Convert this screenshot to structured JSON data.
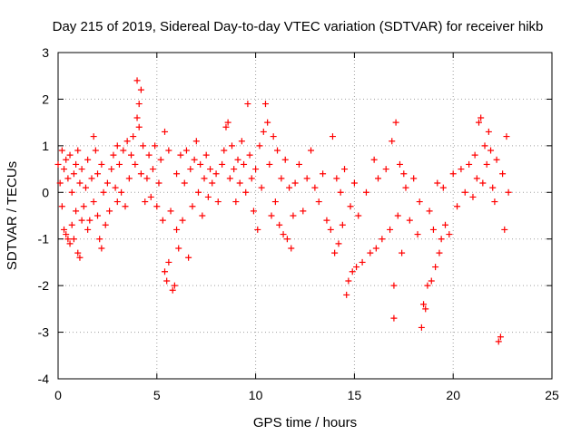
{
  "chart_data": {
    "type": "scatter",
    "title": "Day 215 of 2019, Sidereal Day-to-day VTEC variation (SDTVAR) for receiver hikb",
    "xlabel": "GPS time / hours",
    "ylabel": "SDTVAR / TECUs",
    "xlim": [
      0,
      25
    ],
    "ylim": [
      -4,
      3
    ],
    "xticks": [
      "0",
      "5",
      "10",
      "15",
      "20",
      "25"
    ],
    "yticks": [
      "-4",
      "-3",
      "-2",
      "-1",
      "0",
      "1",
      "2",
      "3"
    ],
    "grid": true,
    "marker": "plus",
    "color": "#ff0000",
    "series": [
      {
        "name": "SDTVAR",
        "values": [
          [
            0.0,
            0.6
          ],
          [
            0.1,
            0.2
          ],
          [
            0.2,
            0.9
          ],
          [
            0.2,
            -0.3
          ],
          [
            0.3,
            0.5
          ],
          [
            0.3,
            -0.8
          ],
          [
            0.4,
            0.7
          ],
          [
            0.4,
            -0.9
          ],
          [
            0.5,
            0.3
          ],
          [
            0.5,
            -1.0
          ],
          [
            0.6,
            0.8
          ],
          [
            0.6,
            -1.1
          ],
          [
            0.7,
            0.0
          ],
          [
            0.7,
            -0.7
          ],
          [
            0.8,
            0.4
          ],
          [
            0.8,
            -1.0
          ],
          [
            0.9,
            0.6
          ],
          [
            0.9,
            -0.4
          ],
          [
            1.0,
            -1.3
          ],
          [
            1.0,
            0.9
          ],
          [
            1.1,
            -1.4
          ],
          [
            1.1,
            0.2
          ],
          [
            1.2,
            -0.6
          ],
          [
            1.2,
            0.5
          ],
          [
            1.3,
            -0.3
          ],
          [
            1.4,
            0.1
          ],
          [
            1.5,
            -0.8
          ],
          [
            1.5,
            0.7
          ],
          [
            1.6,
            -0.6
          ],
          [
            1.7,
            0.3
          ],
          [
            1.8,
            1.2
          ],
          [
            1.8,
            -0.2
          ],
          [
            1.9,
            0.9
          ],
          [
            2.0,
            -0.5
          ],
          [
            2.0,
            0.4
          ],
          [
            2.1,
            -1.0
          ],
          [
            2.2,
            -1.2
          ],
          [
            2.2,
            0.6
          ],
          [
            2.3,
            0.0
          ],
          [
            2.4,
            -0.7
          ],
          [
            2.5,
            0.2
          ],
          [
            2.6,
            -0.4
          ],
          [
            2.7,
            0.5
          ],
          [
            2.8,
            0.8
          ],
          [
            2.9,
            0.1
          ],
          [
            3.0,
            1.0
          ],
          [
            3.0,
            -0.2
          ],
          [
            3.1,
            0.6
          ],
          [
            3.2,
            0.0
          ],
          [
            3.3,
            0.9
          ],
          [
            3.4,
            -0.3
          ],
          [
            3.5,
            1.1
          ],
          [
            3.6,
            0.3
          ],
          [
            3.7,
            0.8
          ],
          [
            3.8,
            1.2
          ],
          [
            3.9,
            0.6
          ],
          [
            4.0,
            1.6
          ],
          [
            4.0,
            2.4
          ],
          [
            4.1,
            1.9
          ],
          [
            4.1,
            1.4
          ],
          [
            4.2,
            2.2
          ],
          [
            4.2,
            0.4
          ],
          [
            4.3,
            1.0
          ],
          [
            4.4,
            -0.2
          ],
          [
            4.5,
            0.3
          ],
          [
            4.6,
            0.8
          ],
          [
            4.7,
            -0.1
          ],
          [
            4.8,
            0.5
          ],
          [
            4.9,
            1.0
          ],
          [
            5.0,
            -0.3
          ],
          [
            5.1,
            0.2
          ],
          [
            5.2,
            0.7
          ],
          [
            5.3,
            -0.6
          ],
          [
            5.4,
            1.3
          ],
          [
            5.4,
            -1.7
          ],
          [
            5.5,
            -1.9
          ],
          [
            5.6,
            0.9
          ],
          [
            5.6,
            -1.5
          ],
          [
            5.7,
            -0.4
          ],
          [
            5.8,
            -2.1
          ],
          [
            5.9,
            -2.0
          ],
          [
            6.0,
            -0.8
          ],
          [
            6.0,
            0.4
          ],
          [
            6.1,
            -1.2
          ],
          [
            6.2,
            0.8
          ],
          [
            6.3,
            -0.6
          ],
          [
            6.4,
            0.2
          ],
          [
            6.5,
            0.9
          ],
          [
            6.6,
            -1.4
          ],
          [
            6.7,
            0.5
          ],
          [
            6.8,
            -0.3
          ],
          [
            6.9,
            0.7
          ],
          [
            7.0,
            1.1
          ],
          [
            7.1,
            0.0
          ],
          [
            7.2,
            0.6
          ],
          [
            7.3,
            -0.5
          ],
          [
            7.4,
            0.3
          ],
          [
            7.5,
            0.8
          ],
          [
            7.6,
            -0.1
          ],
          [
            7.7,
            0.5
          ],
          [
            7.8,
            0.2
          ],
          [
            8.0,
            0.4
          ],
          [
            8.1,
            -0.2
          ],
          [
            8.3,
            0.6
          ],
          [
            8.4,
            0.9
          ],
          [
            8.5,
            1.4
          ],
          [
            8.6,
            1.5
          ],
          [
            8.7,
            0.3
          ],
          [
            8.8,
            1.0
          ],
          [
            8.9,
            0.5
          ],
          [
            9.0,
            -0.2
          ],
          [
            9.1,
            0.7
          ],
          [
            9.2,
            0.2
          ],
          [
            9.3,
            1.1
          ],
          [
            9.4,
            0.6
          ],
          [
            9.5,
            0.0
          ],
          [
            9.6,
            1.9
          ],
          [
            9.7,
            0.8
          ],
          [
            9.8,
            0.3
          ],
          [
            9.9,
            -0.4
          ],
          [
            10.0,
            0.5
          ],
          [
            10.1,
            -0.8
          ],
          [
            10.2,
            1.0
          ],
          [
            10.3,
            0.1
          ],
          [
            10.4,
            1.3
          ],
          [
            10.5,
            1.9
          ],
          [
            10.6,
            1.5
          ],
          [
            10.7,
            0.6
          ],
          [
            10.8,
            -0.5
          ],
          [
            10.9,
            1.2
          ],
          [
            11.0,
            -0.2
          ],
          [
            11.1,
            0.9
          ],
          [
            11.2,
            -0.7
          ],
          [
            11.3,
            0.3
          ],
          [
            11.4,
            -0.9
          ],
          [
            11.5,
            0.7
          ],
          [
            11.6,
            -1.0
          ],
          [
            11.7,
            0.1
          ],
          [
            11.8,
            -1.2
          ],
          [
            11.9,
            -0.5
          ],
          [
            12.0,
            0.2
          ],
          [
            12.2,
            0.6
          ],
          [
            12.4,
            -0.4
          ],
          [
            12.6,
            0.3
          ],
          [
            12.8,
            0.9
          ],
          [
            13.0,
            0.1
          ],
          [
            13.2,
            -0.2
          ],
          [
            13.4,
            0.4
          ],
          [
            13.6,
            -0.6
          ],
          [
            13.8,
            -0.8
          ],
          [
            13.9,
            1.2
          ],
          [
            14.0,
            -1.3
          ],
          [
            14.1,
            0.3
          ],
          [
            14.2,
            -1.1
          ],
          [
            14.3,
            0.0
          ],
          [
            14.4,
            -0.7
          ],
          [
            14.5,
            0.5
          ],
          [
            14.6,
            -2.2
          ],
          [
            14.7,
            -1.9
          ],
          [
            14.8,
            -0.3
          ],
          [
            14.9,
            -1.7
          ],
          [
            15.0,
            0.2
          ],
          [
            15.1,
            -1.6
          ],
          [
            15.2,
            -0.5
          ],
          [
            15.4,
            -1.5
          ],
          [
            15.6,
            0.0
          ],
          [
            15.8,
            -1.3
          ],
          [
            16.0,
            0.7
          ],
          [
            16.1,
            -1.2
          ],
          [
            16.2,
            0.3
          ],
          [
            16.4,
            -1.0
          ],
          [
            16.6,
            0.5
          ],
          [
            16.8,
            -0.8
          ],
          [
            16.9,
            1.1
          ],
          [
            17.0,
            -2.7
          ],
          [
            17.0,
            -2.0
          ],
          [
            17.1,
            1.5
          ],
          [
            17.2,
            -0.5
          ],
          [
            17.3,
            0.6
          ],
          [
            17.4,
            -1.3
          ],
          [
            17.5,
            0.4
          ],
          [
            17.6,
            0.1
          ],
          [
            17.8,
            -0.6
          ],
          [
            18.0,
            0.3
          ],
          [
            18.2,
            -0.9
          ],
          [
            18.3,
            -0.2
          ],
          [
            18.4,
            -2.9
          ],
          [
            18.5,
            -2.4
          ],
          [
            18.6,
            -2.5
          ],
          [
            18.7,
            -2.0
          ],
          [
            18.8,
            -0.4
          ],
          [
            18.9,
            -1.9
          ],
          [
            19.0,
            -0.8
          ],
          [
            19.1,
            -1.6
          ],
          [
            19.2,
            0.2
          ],
          [
            19.3,
            -1.3
          ],
          [
            19.4,
            -1.0
          ],
          [
            19.5,
            0.1
          ],
          [
            19.6,
            -0.7
          ],
          [
            19.8,
            -0.9
          ],
          [
            20.0,
            0.4
          ],
          [
            20.2,
            -0.3
          ],
          [
            20.4,
            0.5
          ],
          [
            20.6,
            0.0
          ],
          [
            20.8,
            0.6
          ],
          [
            21.0,
            -0.1
          ],
          [
            21.1,
            0.8
          ],
          [
            21.2,
            0.3
          ],
          [
            21.3,
            1.5
          ],
          [
            21.4,
            1.6
          ],
          [
            21.5,
            0.2
          ],
          [
            21.6,
            1.0
          ],
          [
            21.7,
            0.6
          ],
          [
            21.8,
            1.3
          ],
          [
            21.9,
            0.9
          ],
          [
            22.0,
            0.1
          ],
          [
            22.1,
            -0.2
          ],
          [
            22.2,
            0.7
          ],
          [
            22.3,
            -3.2
          ],
          [
            22.4,
            -3.1
          ],
          [
            22.5,
            0.4
          ],
          [
            22.6,
            -0.8
          ],
          [
            22.7,
            1.2
          ],
          [
            22.8,
            0.0
          ]
        ]
      }
    ]
  }
}
